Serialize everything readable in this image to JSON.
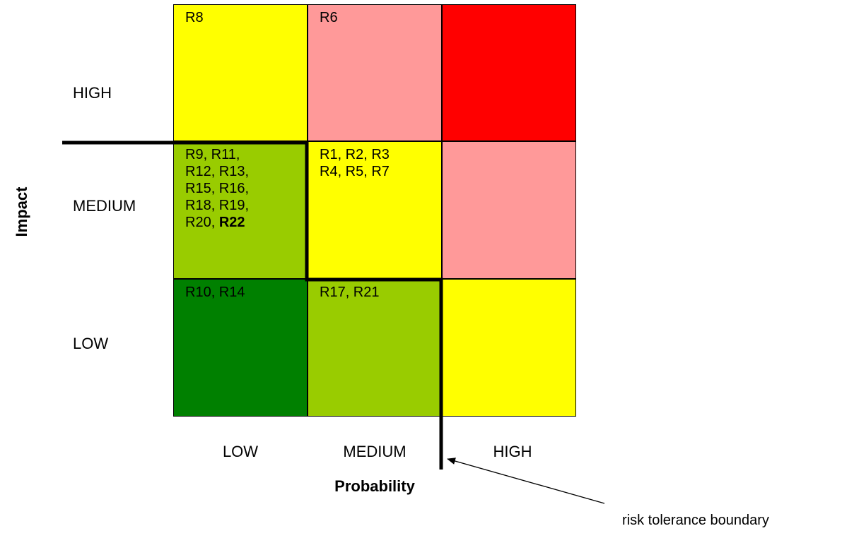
{
  "impact_axis": {
    "title": "Impact",
    "levels": [
      "HIGH",
      "MEDIUM",
      "LOW"
    ]
  },
  "probability_axis": {
    "title": "Probability",
    "levels": [
      "LOW",
      "MEDIUM",
      "HIGH"
    ]
  },
  "cells": {
    "high_low": {
      "text": "R8",
      "color": "#ffff00"
    },
    "high_med": {
      "text": "R6",
      "color": "#ff9999"
    },
    "high_high": {
      "text": "",
      "color": "#ff0000"
    },
    "med_low": {
      "text": "R9, R11,\nR12, R13,\nR15, R16,\nR18, R19,\nR20, ",
      "bold_text": "R22",
      "color": "#99cc00"
    },
    "med_med": {
      "text": "R1, R2, R3\nR4, R5, R7",
      "color": "#ffff00"
    },
    "med_high": {
      "text": "",
      "color": "#ff9999"
    },
    "low_low": {
      "text": "R10, R14",
      "color": "#008000"
    },
    "low_med": {
      "text": "R17, R21",
      "color": "#99cc00"
    },
    "low_high": {
      "text": "",
      "color": "#ffff00"
    }
  },
  "boundary": {
    "label": "risk tolerance boundary",
    "color": "#000000"
  }
}
